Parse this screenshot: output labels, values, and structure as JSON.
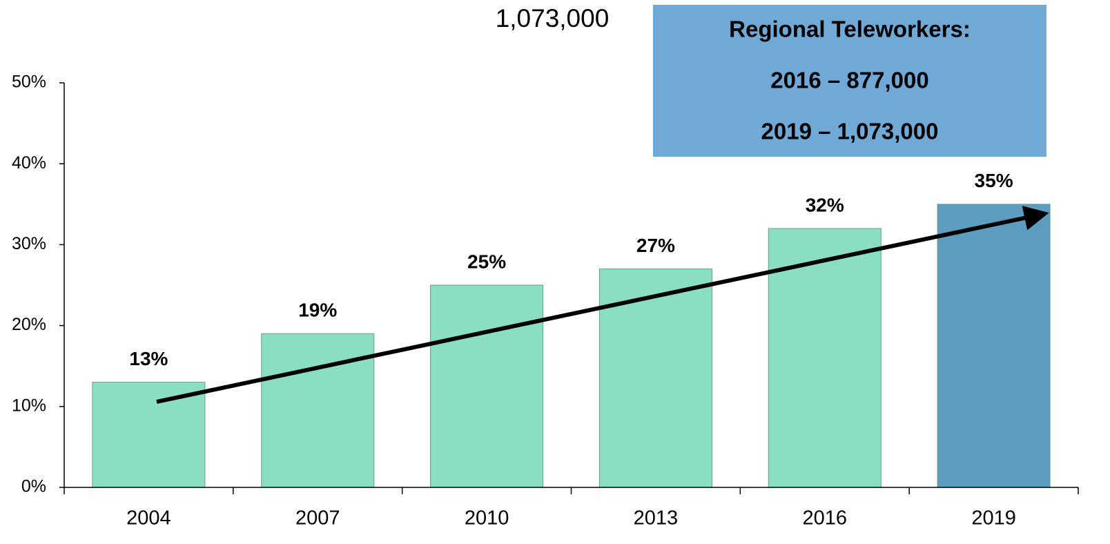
{
  "chart_data": {
    "type": "bar",
    "annotation": "1,073,000",
    "box": {
      "title": "Regional Teleworkers:",
      "lines": [
        "2016 – 877,000",
        "2019 – 1,073,000"
      ],
      "color": "#70a8d6"
    },
    "categories": [
      "2004",
      "2007",
      "2010",
      "2013",
      "2016",
      "2019"
    ],
    "values": [
      13,
      19,
      25,
      27,
      32,
      35
    ],
    "value_labels": [
      "13%",
      "19%",
      "25%",
      "27%",
      "32%",
      "35%"
    ],
    "colors": [
      "#8adfc3",
      "#8adfc3",
      "#8adfc3",
      "#8adfc3",
      "#8adfc3",
      "#5b9cbf"
    ],
    "ylim": [
      0,
      50
    ],
    "yticks": [
      {
        "value": 0,
        "label": "0%"
      },
      {
        "value": 10,
        "label": "10%"
      },
      {
        "value": 20,
        "label": "20%"
      },
      {
        "value": 30,
        "label": "30%"
      },
      {
        "value": 40,
        "label": "40%"
      },
      {
        "value": 50,
        "label": "50%"
      }
    ]
  }
}
